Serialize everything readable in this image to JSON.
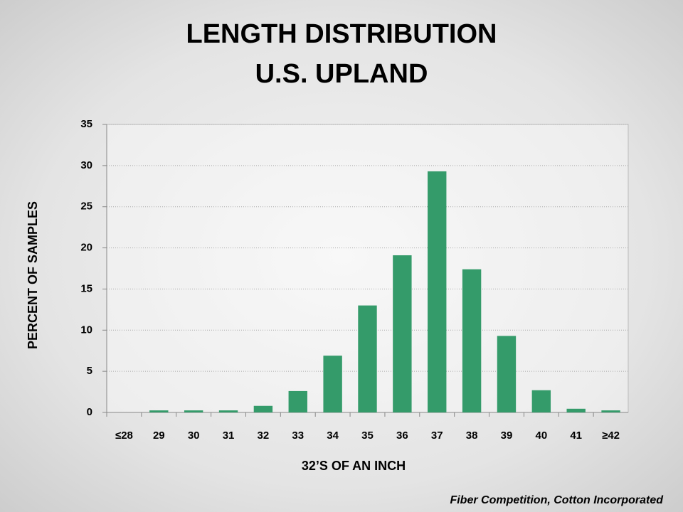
{
  "chart_data": {
    "type": "bar",
    "title": [
      "LENGTH DISTRIBUTION",
      "U.S. UPLAND"
    ],
    "x_label": "32’S OF AN INCH",
    "y_label": "PERCENT OF SAMPLES",
    "source": "Fiber Competition, Cotton Incorporated",
    "categories": [
      "≤28",
      "29",
      "30",
      "31",
      "32",
      "33",
      "34",
      "35",
      "36",
      "37",
      "38",
      "39",
      "40",
      "41",
      "≥42"
    ],
    "values": [
      0,
      0.25,
      0.25,
      0.25,
      0.8,
      2.6,
      6.9,
      13,
      19.1,
      29.3,
      17.4,
      9.3,
      2.7,
      0.45,
      0.25
    ],
    "color": "#349b6a",
    "ylim": [
      0,
      35
    ],
    "yticks": [
      0,
      5,
      10,
      15,
      20,
      25,
      30,
      35
    ],
    "grid": true
  }
}
